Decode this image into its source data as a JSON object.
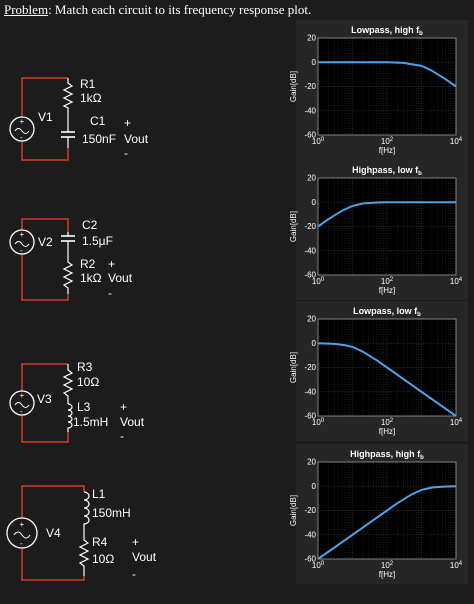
{
  "problem": {
    "prefix": "Problem",
    "text": ": Match each circuit to its frequency response plot."
  },
  "colors": {
    "wire": "#d13a2a",
    "component": "#ffffff",
    "curve": "#4ea3e6",
    "plot_bg": "#000000"
  },
  "circuits": [
    {
      "source": "V1",
      "components": [
        {
          "name": "R1",
          "value": "1kΩ"
        },
        {
          "name": "C1",
          "value": "150nF"
        }
      ],
      "output_label": "Vout",
      "plus": "+",
      "minus": "-"
    },
    {
      "source": "V2",
      "components": [
        {
          "name": "C2",
          "value": "1.5μF"
        },
        {
          "name": "R2",
          "value": "1kΩ"
        }
      ],
      "output_label": "Vout",
      "plus": "+",
      "minus": "-"
    },
    {
      "source": "V3",
      "components": [
        {
          "name": "R3",
          "value": "10Ω"
        },
        {
          "name": "L3",
          "value": "1.5mH"
        }
      ],
      "output_label": "Vout",
      "plus": "+",
      "minus": "-"
    },
    {
      "source": "V4",
      "components": [
        {
          "name": "L1",
          "value": "150mH"
        },
        {
          "name": "R4",
          "value": "10Ω"
        }
      ],
      "output_label": "Vout",
      "plus": "+",
      "minus": "-"
    }
  ],
  "chart_data": [
    {
      "type": "line",
      "title": "Lowpass, high f",
      "title_sub": "b",
      "xlabel": "f[Hz]",
      "ylabel": "Gain[dB]",
      "xscale": "log",
      "xlim": [
        1,
        10000
      ],
      "ylim": [
        -60,
        20
      ],
      "yticks": [
        20,
        0,
        -20,
        -40,
        -60
      ],
      "xticks": [
        {
          "base": "10",
          "exp": "0",
          "value": 1
        },
        {
          "base": "10",
          "exp": "2",
          "value": 100
        },
        {
          "base": "10",
          "exp": "4",
          "value": 10000
        }
      ],
      "grid": true,
      "series": [
        {
          "x": [
            1,
            10,
            100,
            300,
            1000,
            2000,
            5000,
            10000
          ],
          "y": [
            0,
            0,
            0,
            -0.5,
            -3,
            -7,
            -14,
            -20
          ]
        }
      ]
    },
    {
      "type": "line",
      "title": "Highpass, low f",
      "title_sub": "b",
      "xlabel": "f[Hz]",
      "ylabel": "Gain[dB]",
      "xscale": "log",
      "xlim": [
        1,
        10000
      ],
      "ylim": [
        -60,
        20
      ],
      "yticks": [
        20,
        0,
        -20,
        -40,
        -60
      ],
      "xticks": [
        {
          "base": "10",
          "exp": "0",
          "value": 1
        },
        {
          "base": "10",
          "exp": "2",
          "value": 100
        },
        {
          "base": "10",
          "exp": "4",
          "value": 10000
        }
      ],
      "grid": true,
      "series": [
        {
          "x": [
            1,
            2,
            5,
            10,
            20,
            50,
            100,
            1000,
            10000
          ],
          "y": [
            -20,
            -14,
            -7,
            -3,
            -1,
            -0.2,
            0,
            0,
            0
          ]
        }
      ]
    },
    {
      "type": "line",
      "title": "Lowpass, low f",
      "title_sub": "b",
      "xlabel": "f[Hz]",
      "ylabel": "Gain[dB]",
      "xscale": "log",
      "xlim": [
        1,
        10000
      ],
      "ylim": [
        -60,
        20
      ],
      "yticks": [
        20,
        0,
        -20,
        -40,
        -60
      ],
      "xticks": [
        {
          "base": "10",
          "exp": "0",
          "value": 1
        },
        {
          "base": "10",
          "exp": "2",
          "value": 100
        },
        {
          "base": "10",
          "exp": "4",
          "value": 10000
        }
      ],
      "grid": true,
      "series": [
        {
          "x": [
            1,
            3,
            6,
            10,
            20,
            50,
            100,
            1000,
            10000
          ],
          "y": [
            0,
            -0.5,
            -1.5,
            -3,
            -7,
            -14,
            -20,
            -40,
            -60
          ]
        }
      ]
    },
    {
      "type": "line",
      "title": "Highpass, high f",
      "title_sub": "b",
      "xlabel": "f[Hz]",
      "ylabel": "Gain[dB]",
      "xscale": "log",
      "xlim": [
        1,
        10000
      ],
      "ylim": [
        -60,
        20
      ],
      "yticks": [
        20,
        0,
        -20,
        -40,
        -60
      ],
      "xticks": [
        {
          "base": "10",
          "exp": "0",
          "value": 1
        },
        {
          "base": "10",
          "exp": "2",
          "value": 100
        },
        {
          "base": "10",
          "exp": "4",
          "value": 10000
        }
      ],
      "grid": true,
      "series": [
        {
          "x": [
            1,
            10,
            100,
            200,
            500,
            1000,
            2000,
            5000,
            10000
          ],
          "y": [
            -60,
            -40,
            -20,
            -14,
            -7,
            -3,
            -1,
            -0.2,
            0
          ]
        }
      ]
    }
  ]
}
